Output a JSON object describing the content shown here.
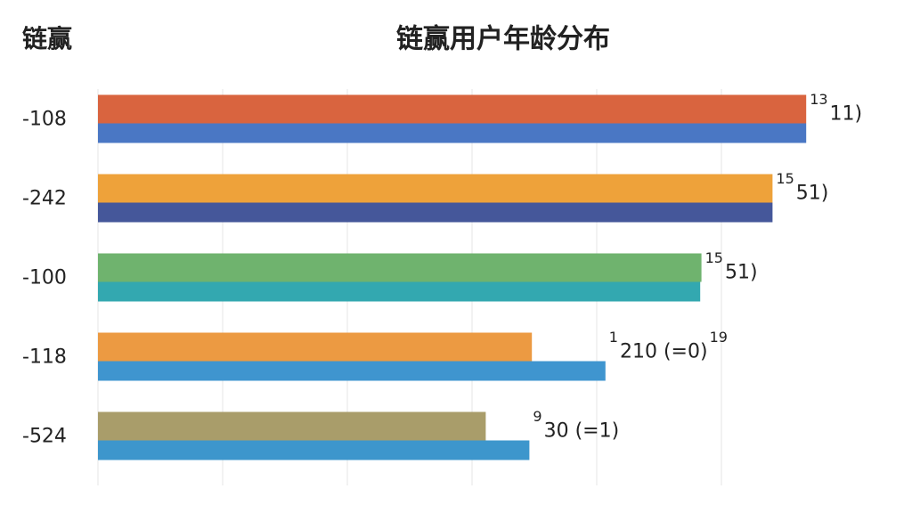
{
  "chart_data": {
    "type": "hbar-pair",
    "title": "链赢用户年龄分布",
    "corner_title": "链赢",
    "categories": [
      "-108",
      "-242",
      "-100",
      "-118",
      "-524"
    ],
    "series": [
      {
        "colors": [
          "#d9643f",
          "#eea23a",
          "#6fb36e",
          "#ec9a42",
          "#a99d6a"
        ],
        "values": [
          5.68,
          5.41,
          4.84,
          3.48,
          3.11
        ]
      },
      {
        "colors": [
          "#4a77c4",
          "#45579a",
          "#33a8b0",
          "#3f95cf",
          "#3d96cc"
        ],
        "values": [
          5.68,
          5.41,
          4.83,
          4.07,
          3.46
        ]
      }
    ],
    "annotations": [
      [
        "13",
        "11)"
      ],
      [
        "15",
        "51)"
      ],
      [
        "15",
        "51)"
      ],
      [
        "1",
        "210 (=0)",
        "19"
      ],
      [
        "9",
        "30 (=1)"
      ]
    ],
    "xlim": [
      0,
      6.5
    ],
    "xticks": [
      0,
      1,
      2,
      3,
      4,
      5
    ],
    "grid": true
  }
}
